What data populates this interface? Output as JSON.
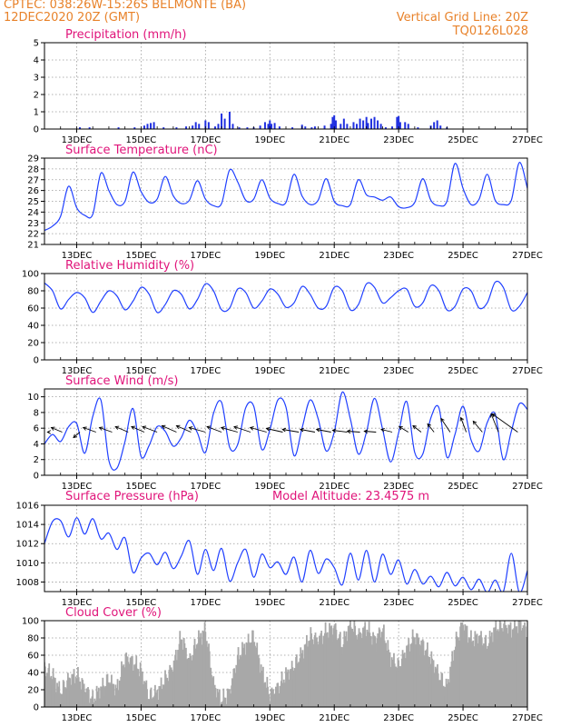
{
  "header": {
    "line1": "CPTEC:   038:26W-15:26S   BELMONTE (BA)",
    "line2": "12DEC2020 20Z (GMT)",
    "grid_note": "Vertical Grid Line: 20Z",
    "code": "TQ0126L028"
  },
  "colors": {
    "header": "#e8822a",
    "title": "#e0147a",
    "line": "#2040ff",
    "bar": "#2030e0",
    "cloud": "#a8a8a8",
    "axis": "#000000",
    "grid": "#999999"
  },
  "x_ticks": [
    "13DEC",
    "15DEC",
    "17DEC",
    "19DEC",
    "21DEC",
    "23DEC",
    "25DEC",
    "27DEC"
  ],
  "x_tick_positions": [
    12.5,
    14.5,
    16.5,
    18.5,
    20.5,
    22.5,
    24.5,
    26.5
  ],
  "xlim": [
    11.5,
    26.5
  ],
  "chart_data": [
    {
      "type": "bar",
      "title": "Precipitation (mm/h)",
      "ylim": [
        0,
        5
      ],
      "yticks": [
        0,
        1,
        2,
        3,
        4,
        5
      ],
      "points": [
        [
          12.6,
          0.1
        ],
        [
          12.9,
          0.1
        ],
        [
          13.8,
          0.1
        ],
        [
          14.3,
          0.1
        ],
        [
          14.6,
          0.2
        ],
        [
          14.7,
          0.3
        ],
        [
          14.8,
          0.35
        ],
        [
          14.9,
          0.4
        ],
        [
          15.2,
          0.1
        ],
        [
          15.6,
          0.1
        ],
        [
          15.9,
          0.15
        ],
        [
          16.1,
          0.2
        ],
        [
          16.2,
          0.4
        ],
        [
          16.3,
          0.3
        ],
        [
          16.5,
          0.5
        ],
        [
          16.6,
          0.4
        ],
        [
          16.8,
          0.15
        ],
        [
          16.9,
          0.3
        ],
        [
          17.0,
          0.9
        ],
        [
          17.1,
          0.6
        ],
        [
          17.25,
          1.0
        ],
        [
          17.35,
          0.3
        ],
        [
          17.55,
          0.1
        ],
        [
          17.8,
          0.1
        ],
        [
          18.0,
          0.1
        ],
        [
          18.2,
          0.2
        ],
        [
          18.35,
          0.4
        ],
        [
          18.45,
          0.3
        ],
        [
          18.5,
          0.5
        ],
        [
          18.55,
          0.3
        ],
        [
          18.65,
          0.35
        ],
        [
          18.8,
          0.15
        ],
        [
          19.2,
          0.1
        ],
        [
          19.5,
          0.25
        ],
        [
          19.6,
          0.15
        ],
        [
          19.8,
          0.1
        ],
        [
          19.9,
          0.15
        ],
        [
          20.2,
          0.2
        ],
        [
          20.4,
          0.3
        ],
        [
          20.45,
          0.7
        ],
        [
          20.5,
          0.8
        ],
        [
          20.55,
          0.5
        ],
        [
          20.7,
          0.3
        ],
        [
          20.8,
          0.6
        ],
        [
          20.9,
          0.3
        ],
        [
          21.1,
          0.4
        ],
        [
          21.2,
          0.3
        ],
        [
          21.3,
          0.6
        ],
        [
          21.4,
          0.5
        ],
        [
          21.5,
          0.7
        ],
        [
          21.55,
          0.35
        ],
        [
          21.65,
          0.6
        ],
        [
          21.75,
          0.7
        ],
        [
          21.85,
          0.5
        ],
        [
          21.95,
          0.3
        ],
        [
          22.1,
          0.1
        ],
        [
          22.3,
          0.15
        ],
        [
          22.45,
          0.7
        ],
        [
          22.5,
          0.75
        ],
        [
          22.55,
          0.4
        ],
        [
          22.7,
          0.4
        ],
        [
          22.8,
          0.3
        ],
        [
          23.1,
          0.1
        ],
        [
          23.5,
          0.2
        ],
        [
          23.6,
          0.4
        ],
        [
          23.7,
          0.5
        ],
        [
          23.8,
          0.2
        ],
        [
          24.0,
          0.1
        ]
      ]
    },
    {
      "type": "line",
      "title": "Surface Temperature (nC)",
      "ylim": [
        21,
        29
      ],
      "yticks": [
        21,
        22,
        23,
        24,
        25,
        26,
        27,
        28,
        29
      ],
      "x": [
        11.5,
        11.75,
        12.0,
        12.25,
        12.5,
        12.75,
        13.0,
        13.25,
        13.5,
        13.75,
        14.0,
        14.25,
        14.5,
        14.75,
        15.0,
        15.25,
        15.5,
        15.75,
        16.0,
        16.25,
        16.5,
        16.75,
        17.0,
        17.25,
        17.5,
        17.75,
        18.0,
        18.25,
        18.5,
        18.75,
        19.0,
        19.25,
        19.5,
        19.75,
        20.0,
        20.25,
        20.5,
        20.75,
        21.0,
        21.25,
        21.5,
        21.75,
        22.0,
        22.25,
        22.5,
        22.75,
        23.0,
        23.25,
        23.5,
        23.75,
        24.0,
        24.25,
        24.5,
        24.75,
        25.0,
        25.25,
        25.5,
        25.75,
        26.0,
        26.25,
        26.5
      ],
      "y": [
        22.3,
        22.7,
        23.6,
        26.4,
        24.4,
        23.7,
        23.8,
        27.6,
        26.0,
        24.7,
        25.0,
        27.7,
        25.9,
        24.9,
        25.2,
        27.3,
        25.5,
        24.8,
        25.1,
        26.9,
        25.2,
        24.6,
        24.8,
        27.9,
        26.8,
        25.1,
        25.2,
        27.0,
        25.3,
        24.8,
        24.9,
        27.5,
        25.5,
        24.7,
        25.1,
        27.1,
        25.0,
        24.6,
        24.7,
        27.0,
        25.6,
        25.4,
        25.1,
        25.4,
        24.5,
        24.4,
        24.9,
        27.1,
        25.1,
        24.6,
        25.0,
        28.5,
        26.2,
        24.7,
        25.2,
        27.5,
        25.1,
        24.7,
        25.1,
        28.6,
        26.2
      ]
    },
    {
      "type": "line",
      "title": "Relative Humidity (%)",
      "ylim": [
        0,
        100
      ],
      "yticks": [
        0,
        20,
        40,
        60,
        80,
        100
      ],
      "x": [
        11.5,
        11.75,
        12.0,
        12.25,
        12.5,
        12.75,
        13.0,
        13.25,
        13.5,
        13.75,
        14.0,
        14.25,
        14.5,
        14.75,
        15.0,
        15.25,
        15.5,
        15.75,
        16.0,
        16.25,
        16.5,
        16.75,
        17.0,
        17.25,
        17.5,
        17.75,
        18.0,
        18.25,
        18.5,
        18.75,
        19.0,
        19.25,
        19.5,
        19.75,
        20.0,
        20.25,
        20.5,
        20.75,
        21.0,
        21.25,
        21.5,
        21.75,
        22.0,
        22.25,
        22.5,
        22.75,
        23.0,
        23.25,
        23.5,
        23.75,
        24.0,
        24.25,
        24.5,
        24.75,
        25.0,
        25.25,
        25.5,
        25.75,
        26.0,
        26.25,
        26.5
      ],
      "y": [
        89,
        80,
        59,
        70,
        78,
        72,
        55,
        68,
        80,
        74,
        58,
        68,
        84,
        76,
        55,
        64,
        80,
        76,
        59,
        70,
        88,
        80,
        58,
        60,
        82,
        78,
        60,
        68,
        82,
        76,
        61,
        66,
        85,
        76,
        60,
        62,
        84,
        80,
        58,
        64,
        88,
        84,
        66,
        72,
        80,
        82,
        62,
        66,
        86,
        80,
        58,
        62,
        82,
        80,
        60,
        66,
        90,
        84,
        58,
        62,
        78
      ]
    },
    {
      "type": "line",
      "title": "Surface Wind (m/s)",
      "ylim": [
        0,
        11
      ],
      "yticks": [
        0,
        2,
        4,
        6,
        8,
        10
      ],
      "x": [
        11.5,
        11.75,
        12.0,
        12.25,
        12.5,
        12.75,
        13.0,
        13.25,
        13.5,
        13.75,
        14.0,
        14.25,
        14.5,
        14.75,
        15.0,
        15.25,
        15.5,
        15.75,
        16.0,
        16.25,
        16.5,
        16.75,
        17.0,
        17.25,
        17.5,
        17.75,
        18.0,
        18.25,
        18.5,
        18.75,
        19.0,
        19.25,
        19.5,
        19.75,
        20.0,
        20.25,
        20.5,
        20.75,
        21.0,
        21.25,
        21.5,
        21.75,
        22.0,
        22.25,
        22.5,
        22.75,
        23.0,
        23.25,
        23.5,
        23.75,
        24.0,
        24.25,
        24.5,
        24.75,
        25.0,
        25.25,
        25.5,
        25.75,
        26.0,
        26.25,
        26.5
      ],
      "y": [
        4.0,
        5.2,
        4.3,
        6.2,
        6.6,
        2.8,
        7.5,
        9.6,
        1.9,
        0.9,
        4.3,
        8.5,
        2.4,
        3.8,
        6.2,
        5.6,
        3.7,
        4.8,
        7.0,
        5.4,
        2.9,
        7.9,
        9.3,
        3.6,
        3.9,
        8.6,
        8.8,
        3.3,
        5.8,
        9.6,
        8.7,
        2.5,
        6.0,
        9.6,
        7.2,
        3.1,
        5.5,
        10.6,
        7.2,
        2.7,
        5.5,
        9.8,
        5.9,
        1.7,
        5.4,
        9.4,
        2.9,
        2.7,
        7.3,
        8.6,
        2.3,
        5.2,
        8.8,
        4.5,
        3.1,
        6.7,
        7.8,
        2.0,
        5.6,
        9.1,
        8.4
      ],
      "vectors": [
        [
          11.65,
          10,
          -2,
          0
        ],
        [
          12.05,
          16,
          -12,
          -5
        ],
        [
          12.6,
          10,
          -7,
          6
        ],
        [
          13.1,
          18,
          -14,
          -5
        ],
        [
          13.6,
          20,
          -14,
          -5
        ],
        [
          14.1,
          19,
          -14,
          -6
        ],
        [
          14.6,
          19,
          -14,
          -6
        ],
        [
          15.0,
          22,
          -16,
          -6
        ],
        [
          15.6,
          22,
          -16,
          -7
        ],
        [
          16.05,
          22,
          -16,
          -7
        ],
        [
          16.5,
          24,
          -18,
          -5
        ],
        [
          17.0,
          22,
          -16,
          -6
        ],
        [
          17.5,
          24,
          -18,
          -5
        ],
        [
          17.9,
          24,
          -18,
          -6
        ],
        [
          18.4,
          26,
          -18,
          -5
        ],
        [
          18.9,
          24,
          -18,
          -4
        ],
        [
          19.4,
          25,
          -18,
          -3
        ],
        [
          19.9,
          22,
          -16,
          -3
        ],
        [
          20.4,
          23,
          -16,
          -3
        ],
        [
          20.9,
          22,
          -16,
          -2
        ],
        [
          21.3,
          20,
          -14,
          -1
        ],
        [
          21.8,
          18,
          -13,
          -1
        ],
        [
          22.3,
          16,
          -12,
          -3
        ],
        [
          22.8,
          14,
          -10,
          -6
        ],
        [
          23.2,
          12,
          -9,
          -7
        ],
        [
          23.6,
          10,
          -7,
          -9
        ],
        [
          24.1,
          12,
          -10,
          -15
        ],
        [
          24.6,
          8,
          -6,
          -16
        ],
        [
          25.1,
          14,
          -10,
          -12
        ],
        [
          25.6,
          12,
          -8,
          -20
        ],
        [
          26.2,
          14,
          -28,
          -20
        ]
      ]
    },
    {
      "type": "line",
      "title": "Surface Pressure (hPa)",
      "annotation": "Model Altitude: 23.4575 m",
      "ylim": [
        1007,
        1016
      ],
      "yticks": [
        1008,
        1010,
        1012,
        1014,
        1016
      ],
      "x": [
        11.5,
        11.75,
        12.0,
        12.25,
        12.5,
        12.75,
        13.0,
        13.25,
        13.5,
        13.75,
        14.0,
        14.25,
        14.5,
        14.75,
        15.0,
        15.25,
        15.5,
        15.75,
        16.0,
        16.25,
        16.5,
        16.75,
        17.0,
        17.25,
        17.5,
        17.75,
        18.0,
        18.25,
        18.5,
        18.75,
        19.0,
        19.25,
        19.5,
        19.75,
        20.0,
        20.25,
        20.5,
        20.75,
        21.0,
        21.25,
        21.5,
        21.75,
        22.0,
        22.25,
        22.5,
        22.75,
        23.0,
        23.25,
        23.5,
        23.75,
        24.0,
        24.25,
        24.5,
        24.75,
        25.0,
        25.25,
        25.5,
        25.75,
        26.0,
        26.25,
        26.5
      ],
      "y": [
        1012.0,
        1014.3,
        1014.4,
        1012.7,
        1014.7,
        1013.0,
        1014.6,
        1012.5,
        1013.1,
        1011.4,
        1012.6,
        1009.0,
        1010.5,
        1011.0,
        1009.8,
        1011.1,
        1009.4,
        1010.7,
        1012.3,
        1008.8,
        1011.4,
        1009.2,
        1011.5,
        1008.1,
        1010.0,
        1011.4,
        1008.5,
        1010.9,
        1009.5,
        1010.1,
        1008.8,
        1010.6,
        1008.0,
        1011.3,
        1008.9,
        1010.4,
        1009.5,
        1007.7,
        1011.0,
        1008.2,
        1011.3,
        1008.0,
        1010.9,
        1008.8,
        1010.3,
        1007.8,
        1009.3,
        1007.8,
        1008.6,
        1007.5,
        1009.0,
        1007.6,
        1008.5,
        1007.2,
        1008.3,
        1006.9,
        1008.2,
        1007.0,
        1011.0,
        1006.9,
        1009.2
      ]
    },
    {
      "type": "bar",
      "title": "Cloud Cover (%)",
      "ylim": [
        0,
        100
      ],
      "yticks": [
        0,
        20,
        40,
        60,
        80,
        100
      ],
      "x": [
        11.5,
        11.75,
        12.0,
        12.25,
        12.5,
        12.75,
        13.0,
        13.25,
        13.5,
        13.75,
        14.0,
        14.25,
        14.5,
        14.75,
        15.0,
        15.25,
        15.5,
        15.75,
        16.0,
        16.25,
        16.5,
        16.75,
        17.0,
        17.25,
        17.5,
        17.75,
        18.0,
        18.25,
        18.5,
        18.75,
        19.0,
        19.25,
        19.5,
        19.75,
        20.0,
        20.25,
        20.5,
        20.75,
        21.0,
        21.25,
        21.5,
        21.75,
        22.0,
        22.25,
        22.5,
        22.75,
        23.0,
        23.25,
        23.5,
        23.75,
        24.0,
        24.25,
        24.5,
        24.75,
        25.0,
        25.25,
        25.5,
        25.75,
        26.0,
        26.25,
        26.5
      ],
      "y": [
        42,
        35,
        15,
        30,
        35,
        20,
        6,
        20,
        30,
        18,
        55,
        50,
        40,
        10,
        15,
        30,
        45,
        80,
        50,
        75,
        88,
        25,
        5,
        15,
        55,
        70,
        80,
        40,
        12,
        20,
        35,
        45,
        60,
        80,
        75,
        85,
        90,
        70,
        95,
        80,
        90,
        75,
        88,
        55,
        45,
        65,
        80,
        70,
        55,
        35,
        20,
        70,
        95,
        75,
        80,
        70,
        90,
        92,
        88,
        95,
        85
      ]
    }
  ]
}
